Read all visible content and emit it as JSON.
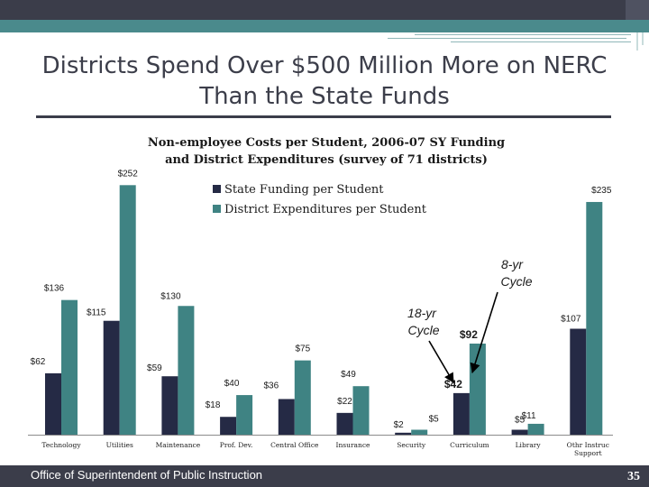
{
  "slide": {
    "title": "Districts Spend Over $500 Million More on NERC Than the State Funds",
    "footer": "Office of Superintendent of Public Instruction",
    "page_number": "35"
  },
  "colors": {
    "state_series": "#252a45",
    "district_series": "#3f8383",
    "header_dark": "#3b3d4a",
    "header_teal": "#4a8a8c"
  },
  "chart_data": {
    "type": "bar",
    "title": "Non-employee Costs per Student, 2006-07 SY Funding and District  Expenditures (survey of 71 districts)",
    "categories": [
      "Technology",
      "Utilities",
      "Maintenance",
      "Prof. Dev.",
      "Central Office",
      "Insurance",
      "Security",
      "Curriculum",
      "Library",
      "Othr Instruc Support"
    ],
    "series": [
      {
        "name": "State Funding per Student",
        "values": [
          62,
          115,
          59,
          18,
          36,
          22,
          2,
          42,
          5,
          107
        ],
        "labels": [
          "$62",
          "$115",
          "$59",
          "$18",
          "$36",
          "$22",
          "$2",
          "$42",
          "$5",
          "$107"
        ]
      },
      {
        "name": "District Expenditures per Student",
        "values": [
          136,
          252,
          130,
          40,
          75,
          49,
          5,
          92,
          11,
          235
        ],
        "labels": [
          "$136",
          "$252",
          "$130",
          "$40",
          "$75",
          "$49",
          "$5",
          "$92",
          "$11",
          "$235"
        ]
      }
    ],
    "ylim": [
      0,
      255
    ],
    "legend_position": "top",
    "grid": false,
    "annotations": [
      {
        "text_line1": "18-yr",
        "text_line2": "Cycle",
        "points_to": "Curriculum"
      },
      {
        "text_line1": "8-yr",
        "text_line2": "Cycle",
        "points_to": "Library"
      }
    ]
  }
}
